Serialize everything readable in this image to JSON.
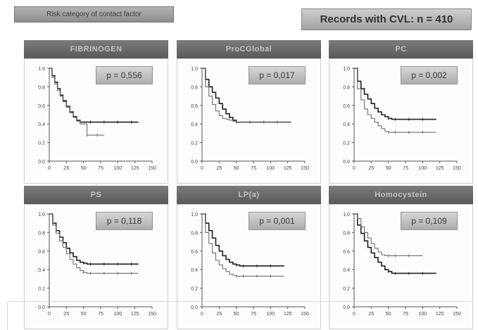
{
  "subtitle": "Risk category of contact factor",
  "records_label": "Records with CVL: n = 410",
  "colors": {
    "curve_dark": "#202020",
    "curve_light": "#707070"
  },
  "chart_data": [
    {
      "type": "line",
      "title": "FIBRINOGEN",
      "annotation": "p = 0,556",
      "ylim": [
        0,
        1.0
      ],
      "xlim": [
        0,
        150
      ],
      "x_ticks": [
        "0",
        "25",
        "50",
        "75",
        "100",
        "125",
        "150"
      ],
      "y_ticks": [
        "0.0",
        "0.2",
        "0.4",
        "0.6",
        "0.8",
        "1.0"
      ],
      "series": [
        {
          "x": [
            0,
            4,
            8,
            12,
            16,
            20,
            25,
            30,
            35,
            40,
            45,
            50,
            60,
            70,
            80,
            90,
            100,
            110,
            120,
            130
          ],
          "y": [
            1.0,
            0.92,
            0.85,
            0.78,
            0.71,
            0.65,
            0.59,
            0.53,
            0.48,
            0.44,
            0.42,
            0.42,
            0.42,
            0.42,
            0.42,
            0.42,
            0.42,
            0.42,
            0.42,
            0.42
          ]
        },
        {
          "x": [
            0,
            4,
            8,
            12,
            16,
            20,
            25,
            30,
            35,
            40,
            45,
            50,
            55,
            60,
            70,
            80
          ],
          "y": [
            1.0,
            0.9,
            0.83,
            0.76,
            0.7,
            0.64,
            0.58,
            0.52,
            0.47,
            0.43,
            0.4,
            0.4,
            0.28,
            0.28,
            0.28,
            0.28
          ]
        }
      ]
    },
    {
      "type": "line",
      "title": "ProCGlobal",
      "annotation": "p = 0,017",
      "ylim": [
        0,
        1.0
      ],
      "xlim": [
        0,
        150
      ],
      "x_ticks": [
        "0",
        "25",
        "50",
        "75",
        "100",
        "125",
        "150"
      ],
      "y_ticks": [
        "0.0",
        "0.2",
        "0.4",
        "0.6",
        "0.8",
        "1.0"
      ],
      "series": [
        {
          "x": [
            0,
            5,
            10,
            15,
            20,
            25,
            30,
            35,
            40,
            45,
            50,
            60,
            70,
            80,
            90,
            100,
            110,
            120,
            130
          ],
          "y": [
            1.0,
            0.88,
            0.8,
            0.74,
            0.68,
            0.62,
            0.56,
            0.51,
            0.47,
            0.44,
            0.42,
            0.42,
            0.42,
            0.42,
            0.42,
            0.42,
            0.42,
            0.42,
            0.42
          ]
        },
        {
          "x": [
            0,
            5,
            10,
            15,
            20,
            25,
            30,
            35,
            40,
            45,
            50,
            60,
            70,
            80,
            90,
            100,
            110,
            120,
            130
          ],
          "y": [
            1.0,
            0.8,
            0.7,
            0.61,
            0.54,
            0.49,
            0.46,
            0.45,
            0.44,
            0.43,
            0.42,
            0.42,
            0.42,
            0.42,
            0.42,
            0.42,
            0.42,
            0.42,
            0.42
          ]
        }
      ]
    },
    {
      "type": "line",
      "title": "PC",
      "annotation": "p = 0,002",
      "ylim": [
        0,
        1.0
      ],
      "xlim": [
        0,
        150
      ],
      "x_ticks": [
        "0",
        "25",
        "50",
        "75",
        "100",
        "125",
        "150"
      ],
      "y_ticks": [
        "0.0",
        "0.2",
        "0.4",
        "0.6",
        "0.8",
        "1.0"
      ],
      "series": [
        {
          "x": [
            0,
            5,
            10,
            15,
            20,
            25,
            30,
            35,
            40,
            45,
            50,
            55,
            60,
            70,
            80,
            90,
            100,
            110,
            120
          ],
          "y": [
            1.0,
            0.86,
            0.78,
            0.72,
            0.67,
            0.62,
            0.57,
            0.53,
            0.5,
            0.48,
            0.46,
            0.45,
            0.45,
            0.45,
            0.45,
            0.45,
            0.45,
            0.45,
            0.45
          ]
        },
        {
          "x": [
            0,
            5,
            10,
            15,
            20,
            25,
            30,
            35,
            40,
            45,
            50,
            55,
            60,
            70,
            80,
            90,
            100,
            110,
            120
          ],
          "y": [
            1.0,
            0.78,
            0.66,
            0.56,
            0.5,
            0.46,
            0.42,
            0.38,
            0.35,
            0.32,
            0.31,
            0.31,
            0.31,
            0.31,
            0.31,
            0.31,
            0.31,
            0.31,
            0.31
          ]
        }
      ]
    },
    {
      "type": "line",
      "title": "PS",
      "annotation": "p = 0,118",
      "ylim": [
        0,
        1.0
      ],
      "xlim": [
        0,
        150
      ],
      "x_ticks": [
        "0",
        "25",
        "50",
        "75",
        "100",
        "125",
        "150"
      ],
      "y_ticks": [
        "0.0",
        "0.2",
        "0.4",
        "0.6",
        "0.8",
        "1.0"
      ],
      "series": [
        {
          "x": [
            0,
            5,
            10,
            15,
            20,
            25,
            30,
            35,
            40,
            45,
            50,
            55,
            60,
            70,
            80,
            90,
            100,
            110,
            120,
            130
          ],
          "y": [
            1.0,
            0.9,
            0.82,
            0.75,
            0.69,
            0.63,
            0.58,
            0.54,
            0.5,
            0.48,
            0.47,
            0.46,
            0.46,
            0.46,
            0.46,
            0.46,
            0.46,
            0.46,
            0.46,
            0.46
          ]
        },
        {
          "x": [
            0,
            5,
            10,
            15,
            20,
            25,
            30,
            35,
            40,
            45,
            50,
            55,
            60,
            70,
            80,
            90,
            100,
            110,
            120,
            130
          ],
          "y": [
            1.0,
            0.88,
            0.79,
            0.71,
            0.64,
            0.57,
            0.51,
            0.46,
            0.42,
            0.39,
            0.37,
            0.36,
            0.36,
            0.36,
            0.36,
            0.36,
            0.36,
            0.36,
            0.36,
            0.36
          ]
        }
      ]
    },
    {
      "type": "line",
      "title": "LP(a)",
      "annotation": "p = 0,001",
      "ylim": [
        0,
        1.0
      ],
      "xlim": [
        0,
        150
      ],
      "x_ticks": [
        "0",
        "25",
        "50",
        "75",
        "100",
        "125",
        "150"
      ],
      "y_ticks": [
        "0.0",
        "0.2",
        "0.4",
        "0.6",
        "0.8",
        "1.0"
      ],
      "series": [
        {
          "x": [
            0,
            5,
            10,
            15,
            20,
            25,
            30,
            35,
            40,
            45,
            50,
            55,
            60,
            70,
            80,
            90,
            100,
            110,
            120
          ],
          "y": [
            1.0,
            0.9,
            0.82,
            0.74,
            0.66,
            0.6,
            0.55,
            0.51,
            0.48,
            0.46,
            0.45,
            0.44,
            0.44,
            0.44,
            0.44,
            0.44,
            0.44,
            0.44,
            0.44
          ]
        },
        {
          "x": [
            0,
            5,
            10,
            15,
            20,
            25,
            30,
            35,
            40,
            45,
            50,
            55,
            60,
            70,
            80,
            90,
            100,
            110,
            120
          ],
          "y": [
            1.0,
            0.8,
            0.68,
            0.58,
            0.5,
            0.45,
            0.41,
            0.38,
            0.35,
            0.34,
            0.33,
            0.33,
            0.33,
            0.33,
            0.33,
            0.33,
            0.33,
            0.33,
            0.33
          ]
        }
      ]
    },
    {
      "type": "line",
      "title": "Homocystein",
      "annotation": "p = 0,109",
      "ylim": [
        0,
        1.0
      ],
      "xlim": [
        0,
        150
      ],
      "x_ticks": [
        "0",
        "25",
        "50",
        "75",
        "100",
        "125",
        "150"
      ],
      "y_ticks": [
        "0.0",
        "0.2",
        "0.4",
        "0.6",
        "0.8",
        "1.0"
      ],
      "series": [
        {
          "x": [
            0,
            5,
            10,
            15,
            20,
            25,
            30,
            35,
            40,
            45,
            50,
            55,
            60,
            70,
            80,
            90,
            100,
            110,
            120
          ],
          "y": [
            1.0,
            0.88,
            0.79,
            0.71,
            0.64,
            0.58,
            0.53,
            0.48,
            0.44,
            0.4,
            0.38,
            0.36,
            0.36,
            0.36,
            0.36,
            0.36,
            0.36,
            0.36,
            0.36
          ]
        },
        {
          "x": [
            0,
            5,
            10,
            15,
            20,
            25,
            30,
            35,
            40,
            45,
            50,
            55,
            60,
            70,
            80,
            90,
            100
          ],
          "y": [
            1.0,
            0.95,
            0.86,
            0.8,
            0.74,
            0.68,
            0.63,
            0.59,
            0.56,
            0.55,
            0.55,
            0.55,
            0.55,
            0.55,
            0.55,
            0.55,
            0.55
          ]
        }
      ]
    }
  ]
}
